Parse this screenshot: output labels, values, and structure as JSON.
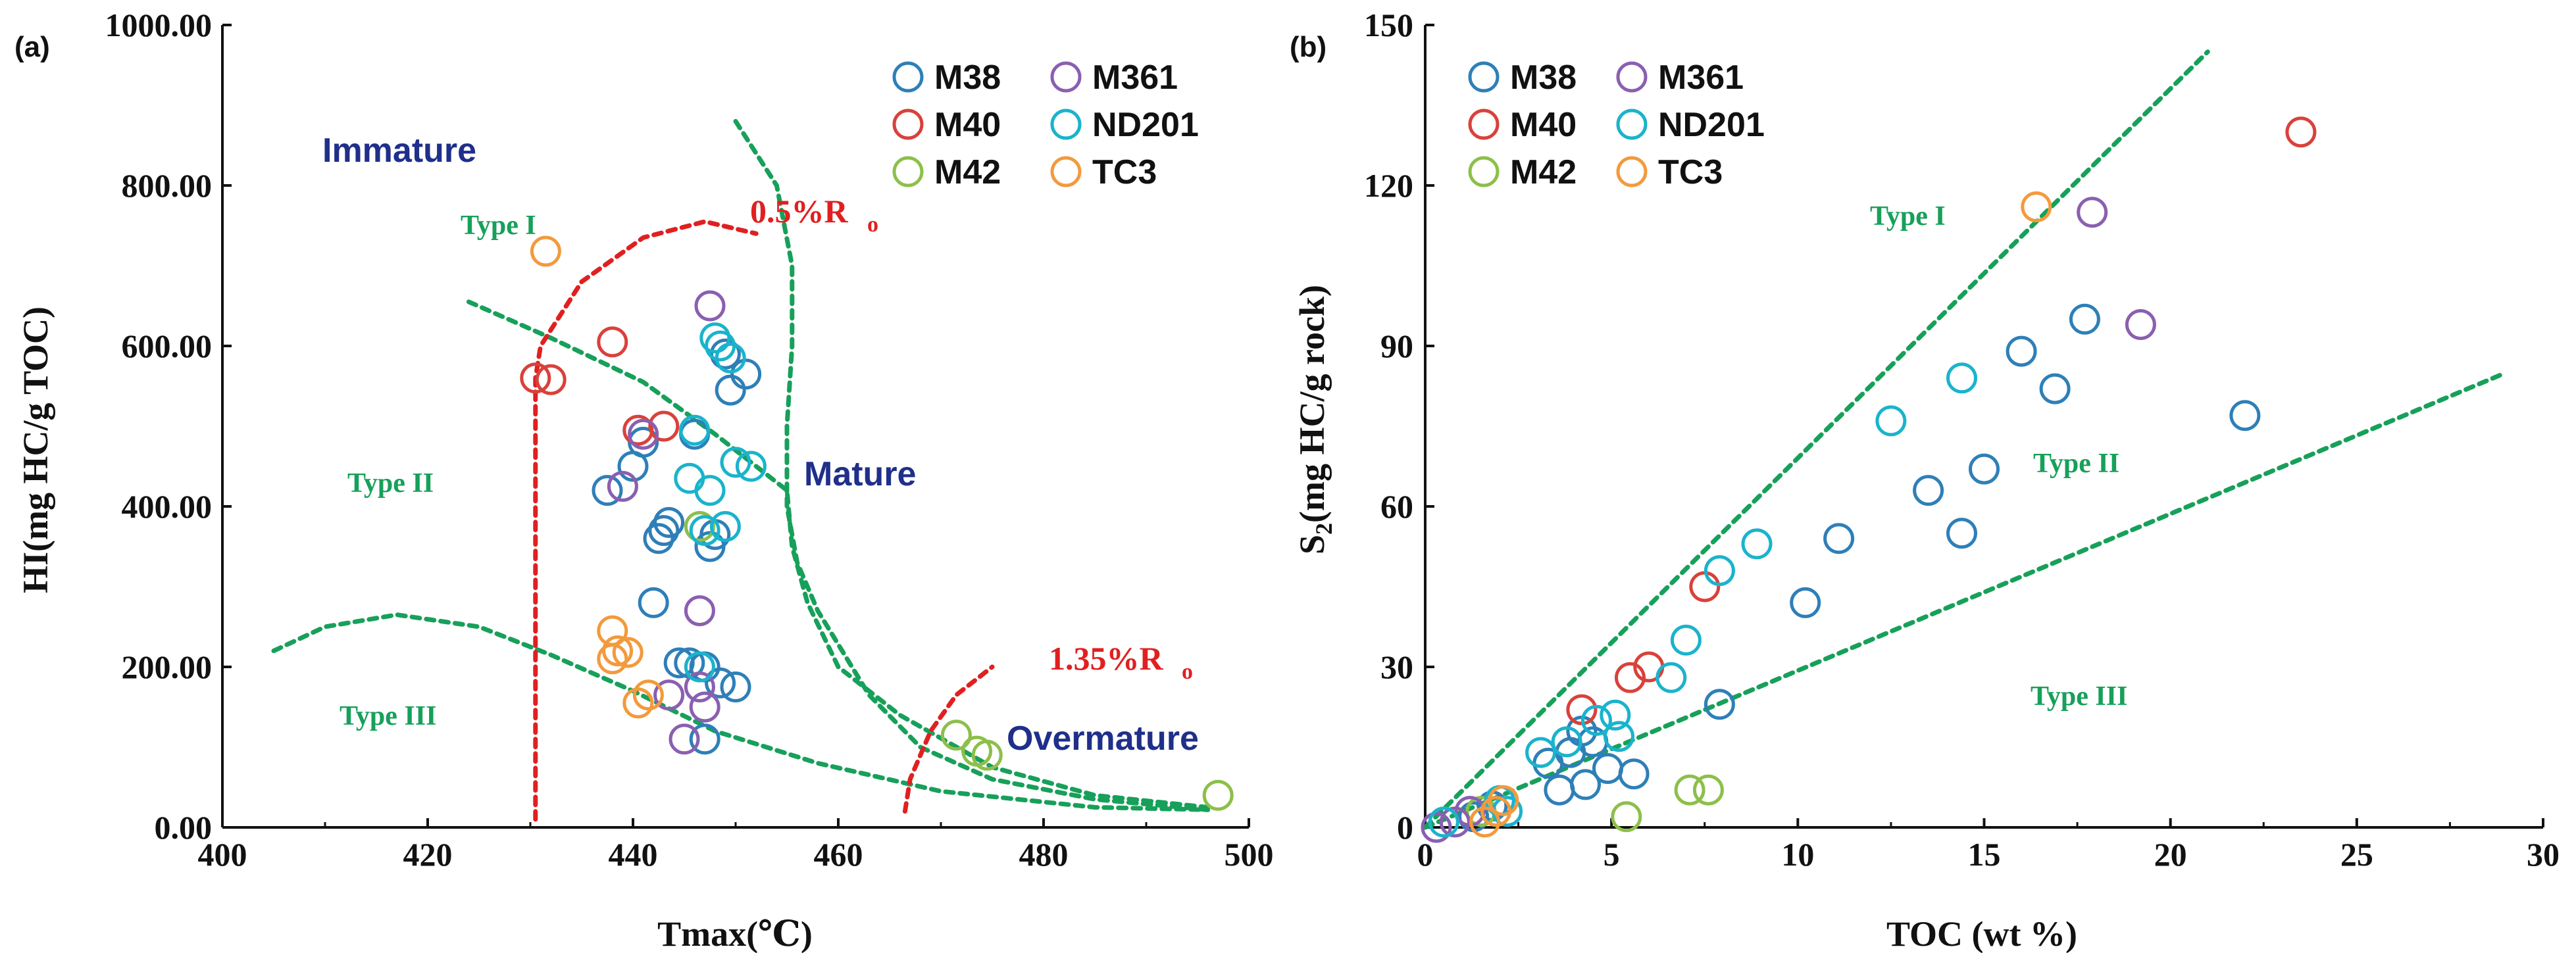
{
  "chart_data": [
    {
      "panel": "(a)",
      "type": "scatter",
      "xlabel": "Tmax(℃)",
      "ylabel": "HI(mg HC/g TOC)",
      "xlim": [
        400,
        500
      ],
      "ylim": [
        0,
        1000
      ],
      "xticks": [
        "400",
        "420",
        "440",
        "460",
        "480",
        "500"
      ],
      "yticks": [
        "0.00",
        "200.00",
        "400.00",
        "600.00",
        "800.00",
        "1000.00"
      ],
      "series": [
        {
          "name": "M38",
          "color": "#2e7fb8",
          "points": [
            [
              437.5,
              420
            ],
            [
              440,
              450
            ],
            [
              441,
              480
            ],
            [
              442,
              280
            ],
            [
              442.5,
              360
            ],
            [
              443,
              370
            ],
            [
              443.5,
              380
            ],
            [
              444.5,
              205
            ],
            [
              445.5,
              205
            ],
            [
              446,
              490
            ],
            [
              447,
              200
            ],
            [
              447,
              110
            ],
            [
              447.5,
              350
            ],
            [
              448,
              365
            ],
            [
              448.5,
              180
            ],
            [
              449,
              590
            ],
            [
              449.5,
              545
            ],
            [
              450,
              175
            ],
            [
              451,
              565
            ]
          ]
        },
        {
          "name": "M40",
          "color": "#d9413b",
          "points": [
            [
              430.5,
              560
            ],
            [
              432,
              558
            ],
            [
              438,
              605
            ],
            [
              440.5,
              495
            ],
            [
              443,
              500
            ]
          ]
        },
        {
          "name": "M42",
          "color": "#8dbf4a",
          "points": [
            [
              446.5,
              375
            ],
            [
              471.5,
              115
            ],
            [
              473.5,
              95
            ],
            [
              474.5,
              90
            ],
            [
              497,
              40
            ]
          ]
        },
        {
          "name": "M361",
          "color": "#8a5fb0",
          "points": [
            [
              439,
              425
            ],
            [
              441,
              490
            ],
            [
              443.5,
              165
            ],
            [
              445,
              110
            ],
            [
              446.5,
              270
            ],
            [
              446.5,
              175
            ],
            [
              447,
              150
            ],
            [
              447.5,
              650
            ]
          ]
        },
        {
          "name": "ND201",
          "color": "#1ab3cc",
          "points": [
            [
              445.5,
              435
            ],
            [
              446,
              495
            ],
            [
              447,
              370
            ],
            [
              447.5,
              420
            ],
            [
              448,
              610
            ],
            [
              448.5,
              600
            ],
            [
              449,
              375
            ],
            [
              449.5,
              585
            ],
            [
              450,
              455
            ],
            [
              451.5,
              450
            ],
            [
              446.5,
              200
            ]
          ]
        },
        {
          "name": "TC3",
          "color": "#f39a3c",
          "points": [
            [
              431.5,
              718
            ],
            [
              438,
              245
            ],
            [
              438,
              210
            ],
            [
              438.5,
              220
            ],
            [
              439.5,
              218
            ],
            [
              440.5,
              155
            ],
            [
              441.5,
              165
            ]
          ]
        }
      ],
      "annotations": {
        "immature": "Immature",
        "mature": "Mature",
        "overmature": "Overmature",
        "type1": "Type I",
        "type2": "Type II",
        "type3": "Type III",
        "ro05": "0.5%R",
        "ro135": "1.35%R",
        "ro_sub": "o"
      },
      "curves": {
        "type1_boundary": [
          [
            450,
            880
          ],
          [
            454,
            800
          ],
          [
            455.5,
            700
          ],
          [
            455.5,
            600
          ],
          [
            455,
            500
          ],
          [
            455,
            400
          ],
          [
            456,
            330
          ],
          [
            458,
            270
          ],
          [
            463,
            165
          ],
          [
            468,
            100
          ],
          [
            475,
            60
          ],
          [
            485,
            35
          ],
          [
            496,
            22
          ]
        ],
        "type2_boundary": [
          [
            424,
            655
          ],
          [
            432,
            610
          ],
          [
            441,
            555
          ],
          [
            448,
            490
          ],
          [
            455,
            420
          ],
          [
            455.5,
            350
          ],
          [
            457,
            280
          ],
          [
            460,
            200
          ],
          [
            466,
            140
          ],
          [
            475,
            75
          ],
          [
            485,
            40
          ],
          [
            496,
            25
          ]
        ],
        "type3_boundary": [
          [
            405,
            220
          ],
          [
            410,
            250
          ],
          [
            417,
            265
          ],
          [
            425,
            250
          ],
          [
            432,
            215
          ],
          [
            440,
            170
          ],
          [
            448,
            120
          ],
          [
            458,
            80
          ],
          [
            470,
            45
          ],
          [
            485,
            25
          ],
          [
            496,
            22
          ]
        ],
        "ro05": [
          [
            430.5,
            10
          ],
          [
            430.5,
            560
          ],
          [
            431,
            600
          ],
          [
            435,
            680
          ],
          [
            441,
            735
          ],
          [
            447,
            755
          ],
          [
            452,
            740
          ]
        ],
        "ro135": [
          [
            466.5,
            20
          ],
          [
            467,
            60
          ],
          [
            469,
            120
          ],
          [
            471.5,
            165
          ],
          [
            475,
            200
          ]
        ]
      }
    },
    {
      "panel": "(b)",
      "type": "scatter",
      "xlabel": "TOC (wt %)",
      "ylabel": "S2(mg HC/g rock)",
      "ylabel_main": "S",
      "ylabel_sub": "2",
      "ylabel_rest": "(mg HC/g rock)",
      "xlim": [
        0,
        30
      ],
      "ylim": [
        0,
        150
      ],
      "xticks": [
        "0",
        "5",
        "10",
        "15",
        "20",
        "25",
        "30"
      ],
      "yticks": [
        "0",
        "30",
        "60",
        "90",
        "120",
        "150"
      ],
      "series": [
        {
          "name": "M38",
          "color": "#2e7fb8",
          "points": [
            [
              3.3,
              12
            ],
            [
              3.6,
              7
            ],
            [
              3.9,
              14
            ],
            [
              4.2,
              18
            ],
            [
              4.3,
              8
            ],
            [
              4.5,
              16
            ],
            [
              4.9,
              11
            ],
            [
              5.6,
              10
            ],
            [
              7.9,
              23
            ],
            [
              10.2,
              42
            ],
            [
              11.1,
              54
            ],
            [
              13.5,
              63
            ],
            [
              14.4,
              55
            ],
            [
              15.0,
              67
            ],
            [
              16.0,
              89
            ],
            [
              16.9,
              82
            ],
            [
              17.7,
              95
            ],
            [
              22.0,
              77
            ],
            [
              1.3,
              2
            ],
            [
              1.8,
              4
            ]
          ]
        },
        {
          "name": "M40",
          "color": "#d9413b",
          "points": [
            [
              4.2,
              22
            ],
            [
              5.5,
              28
            ],
            [
              6.0,
              30
            ],
            [
              7.5,
              45
            ],
            [
              23.5,
              130
            ]
          ]
        },
        {
          "name": "M42",
          "color": "#8dbf4a",
          "points": [
            [
              5.4,
              2
            ],
            [
              7.1,
              7
            ],
            [
              7.6,
              7
            ],
            [
              1.5,
              3
            ]
          ]
        },
        {
          "name": "M361",
          "color": "#8a5fb0",
          "points": [
            [
              0.3,
              0
            ],
            [
              0.8,
              1
            ],
            [
              1.2,
              3
            ],
            [
              17.9,
              115
            ],
            [
              19.2,
              94
            ]
          ]
        },
        {
          "name": "ND201",
          "color": "#1ab3cc",
          "points": [
            [
              2.0,
              5
            ],
            [
              3.1,
              14
            ],
            [
              3.8,
              16
            ],
            [
              4.6,
              20
            ],
            [
              5.1,
              21
            ],
            [
              5.2,
              17
            ],
            [
              6.6,
              28
            ],
            [
              7.0,
              35
            ],
            [
              7.9,
              48
            ],
            [
              8.9,
              53
            ],
            [
              12.5,
              76
            ],
            [
              14.4,
              84
            ],
            [
              0.5,
              1
            ],
            [
              2.2,
              3
            ]
          ]
        },
        {
          "name": "TC3",
          "color": "#f39a3c",
          "points": [
            [
              1.6,
              1
            ],
            [
              1.9,
              3
            ],
            [
              2.1,
              5
            ],
            [
              16.4,
              116
            ]
          ]
        }
      ],
      "annotations": {
        "type1": "Type I",
        "type2": "Type II",
        "type3": "Type III"
      },
      "curves": {
        "line_type1": [
          [
            0,
            0
          ],
          [
            21,
            145
          ]
        ],
        "line_type2": [
          [
            0,
            0
          ],
          [
            29,
            85
          ]
        ]
      }
    }
  ],
  "legend": [
    {
      "name": "M38",
      "color": "#2e7fb8"
    },
    {
      "name": "M361",
      "color": "#8a5fb0"
    },
    {
      "name": "M40",
      "color": "#d9413b"
    },
    {
      "name": "ND201",
      "color": "#1ab3cc"
    },
    {
      "name": "M42",
      "color": "#8dbf4a"
    },
    {
      "name": "TC3",
      "color": "#f39a3c"
    }
  ],
  "colors": {
    "boundary_green": "#17a05a",
    "ro_red": "#e02020",
    "zone_navy": "#1f2f8a",
    "axis": "#111111"
  }
}
